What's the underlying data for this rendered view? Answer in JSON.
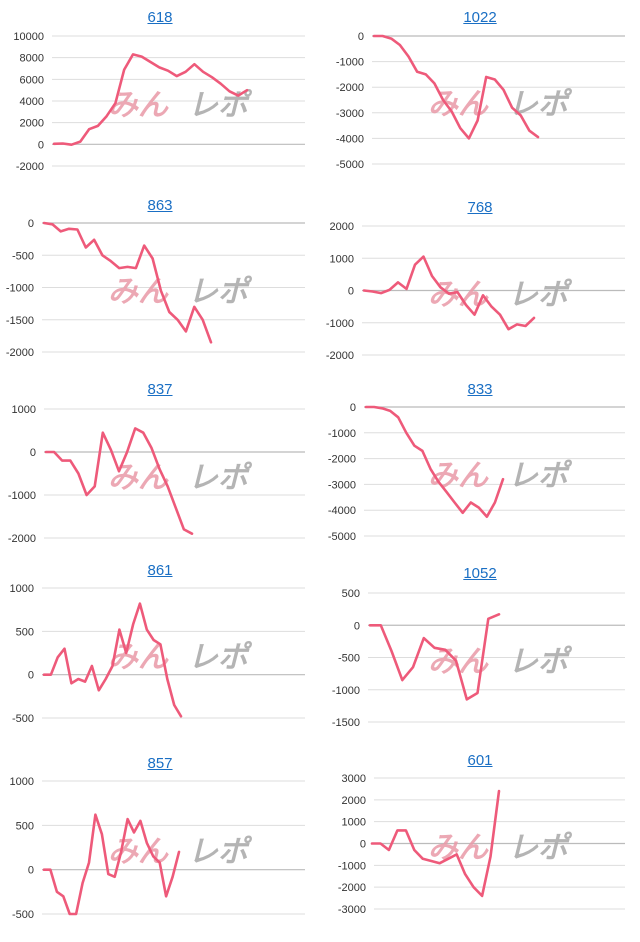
{
  "colors": {
    "line": "#ee5a7a",
    "grid": "#dddddd",
    "axis": "#bbbbbb",
    "title": "#1a6fc4",
    "watermark_red": "#e99aa8",
    "watermark_gray": "#a8a8a8"
  },
  "watermark": {
    "text": "みんレポ"
  },
  "chart_data": [
    {
      "type": "line",
      "title": "618",
      "yticks": [
        10000,
        8000,
        6000,
        4000,
        2000,
        0,
        -2000
      ],
      "ylim": [
        -2000,
        10000
      ],
      "values": [
        50,
        80,
        -30,
        250,
        1400,
        1700,
        2600,
        3800,
        6900,
        8300,
        8100,
        7600,
        7100,
        6800,
        6300,
        6700,
        7400,
        6700,
        6200,
        5600,
        4900,
        4500,
        5000
      ]
    },
    {
      "type": "line",
      "title": "1022",
      "yticks": [
        0,
        -1000,
        -2000,
        -3000,
        -4000,
        -5000
      ],
      "ylim": [
        -5000,
        0
      ],
      "values": [
        0,
        0,
        -100,
        -350,
        -800,
        -1400,
        -1500,
        -1850,
        -2500,
        -2950,
        -3600,
        -4000,
        -3300,
        -1600,
        -1700,
        -2100,
        -2800,
        -3100,
        -3700,
        -3950
      ]
    },
    {
      "type": "line",
      "title": "863",
      "yticks": [
        0,
        -500,
        -1000,
        -1500,
        -2000
      ],
      "ylim": [
        -2000,
        0
      ],
      "values": [
        0,
        -20,
        -130,
        -90,
        -100,
        -380,
        -260,
        -500,
        -590,
        -700,
        -680,
        -700,
        -350,
        -550,
        -1050,
        -1380,
        -1500,
        -1680,
        -1300,
        -1500,
        -1850
      ]
    },
    {
      "type": "line",
      "title": "768",
      "yticks": [
        2000,
        1000,
        0,
        -1000,
        -2000
      ],
      "ylim": [
        -2000,
        2000
      ],
      "values": [
        0,
        -30,
        -80,
        20,
        250,
        50,
        800,
        1050,
        450,
        100,
        -100,
        -50,
        -450,
        -750,
        -150,
        -500,
        -750,
        -1200,
        -1050,
        -1100,
        -850
      ]
    },
    {
      "type": "line",
      "title": "837",
      "yticks": [
        1000,
        0,
        -1000,
        -2000
      ],
      "ylim": [
        -2000,
        1000
      ],
      "values": [
        0,
        0,
        -200,
        -200,
        -500,
        -1000,
        -800,
        450,
        50,
        -450,
        0,
        550,
        450,
        100,
        -400,
        -800,
        -1300,
        -1800,
        -1900
      ]
    },
    {
      "type": "line",
      "title": "833",
      "yticks": [
        0,
        -1000,
        -2000,
        -3000,
        -4000,
        -5000
      ],
      "ylim": [
        -5000,
        0
      ],
      "values": [
        0,
        0,
        -50,
        -150,
        -400,
        -1000,
        -1500,
        -1700,
        -2400,
        -2900,
        -3300,
        -3700,
        -4100,
        -3700,
        -3900,
        -4250,
        -3700,
        -2800
      ]
    },
    {
      "type": "line",
      "title": "861",
      "yticks": [
        1000,
        500,
        0,
        -500
      ],
      "ylim": [
        -500,
        1000
      ],
      "values": [
        0,
        0,
        200,
        300,
        -100,
        -50,
        -80,
        100,
        -180,
        -50,
        100,
        520,
        250,
        580,
        820,
        520,
        400,
        350,
        -50,
        -350,
        -480
      ]
    },
    {
      "type": "line",
      "title": "1052",
      "yticks": [
        500,
        0,
        -500,
        -1000,
        -1500
      ],
      "ylim": [
        -1500,
        500
      ],
      "values": [
        0,
        0,
        -400,
        -850,
        -650,
        -200,
        -350,
        -380,
        -550,
        -1150,
        -1050,
        100,
        170
      ]
    },
    {
      "type": "line",
      "title": "857",
      "yticks": [
        1000,
        500,
        0,
        -500
      ],
      "ylim": [
        -500,
        1000
      ],
      "values": [
        0,
        0,
        -250,
        -300,
        -520,
        -520,
        -150,
        80,
        620,
        400,
        -50,
        -80,
        200,
        570,
        420,
        550,
        300,
        150,
        80,
        -300,
        -80,
        200
      ]
    },
    {
      "type": "line",
      "title": "601",
      "yticks": [
        3000,
        2000,
        1000,
        0,
        -1000,
        -2000,
        -3000
      ],
      "ylim": [
        -3000,
        3000
      ],
      "values": [
        0,
        0,
        -300,
        600,
        600,
        -300,
        -700,
        -800,
        -900,
        -700,
        -500,
        -1400,
        -2000,
        -2400,
        -600,
        2400
      ]
    }
  ]
}
